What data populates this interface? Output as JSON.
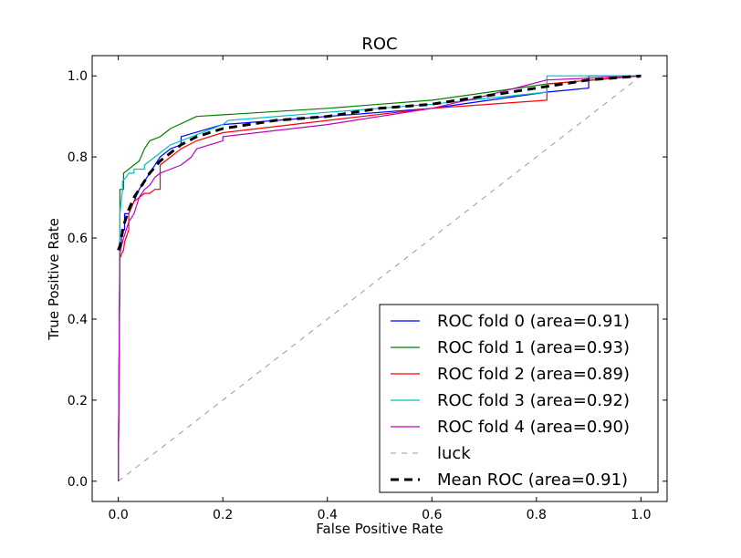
{
  "chart_data": {
    "type": "line",
    "title": "ROC",
    "xlabel": "False Positive Rate",
    "ylabel": "True Positive Rate",
    "xlim": [
      -0.05,
      1.05
    ],
    "ylim": [
      -0.05,
      1.05
    ],
    "xticks": [
      0.0,
      0.2,
      0.4,
      0.6,
      0.8,
      1.0
    ],
    "yticks": [
      0.0,
      0.2,
      0.4,
      0.6,
      0.8,
      1.0
    ],
    "xtick_labels": [
      "0.0",
      "0.2",
      "0.4",
      "0.6",
      "0.8",
      "1.0"
    ],
    "ytick_labels": [
      "0.0",
      "0.2",
      "0.4",
      "0.6",
      "0.8",
      "1.0"
    ],
    "grid": false,
    "legend_location": "lower-right",
    "series": [
      {
        "name": "ROC fold 0 (area=0.91)",
        "color": "#0000ff",
        "dash": "solid",
        "x": [
          0.0,
          0.003,
          0.006,
          0.006,
          0.012,
          0.012,
          0.02,
          0.04,
          0.05,
          0.06,
          0.08,
          0.1,
          0.12,
          0.12,
          0.2,
          0.4,
          0.6,
          0.82,
          0.9,
          0.9,
          1.0
        ],
        "y": [
          0.0,
          0.57,
          0.59,
          0.62,
          0.62,
          0.66,
          0.66,
          0.72,
          0.74,
          0.76,
          0.8,
          0.82,
          0.83,
          0.85,
          0.88,
          0.9,
          0.92,
          0.96,
          0.97,
          1.0,
          1.0
        ]
      },
      {
        "name": "ROC fold 1 (area=0.93)",
        "color": "#008000",
        "dash": "solid",
        "x": [
          0.0,
          0.003,
          0.003,
          0.01,
          0.01,
          0.02,
          0.03,
          0.04,
          0.05,
          0.06,
          0.08,
          0.1,
          0.15,
          0.4,
          0.6,
          0.82,
          1.0
        ],
        "y": [
          0.0,
          0.6,
          0.72,
          0.72,
          0.76,
          0.77,
          0.78,
          0.79,
          0.82,
          0.84,
          0.85,
          0.87,
          0.9,
          0.92,
          0.94,
          0.98,
          1.0
        ]
      },
      {
        "name": "ROC fold 2 (area=0.89)",
        "color": "#ff0000",
        "dash": "solid",
        "x": [
          0.0,
          0.003,
          0.006,
          0.01,
          0.012,
          0.02,
          0.02,
          0.03,
          0.04,
          0.05,
          0.06,
          0.07,
          0.08,
          0.08,
          0.1,
          0.12,
          0.15,
          0.2,
          0.4,
          0.6,
          0.82,
          0.82,
          1.0
        ],
        "y": [
          0.0,
          0.55,
          0.56,
          0.57,
          0.59,
          0.62,
          0.66,
          0.69,
          0.7,
          0.71,
          0.71,
          0.72,
          0.72,
          0.78,
          0.8,
          0.82,
          0.84,
          0.86,
          0.89,
          0.92,
          0.94,
          0.98,
          1.0
        ]
      },
      {
        "name": "ROC fold 3 (area=0.92)",
        "color": "#00bfbf",
        "dash": "solid",
        "x": [
          0.0,
          0.003,
          0.003,
          0.008,
          0.008,
          0.015,
          0.02,
          0.03,
          0.03,
          0.05,
          0.05,
          0.07,
          0.1,
          0.12,
          0.2,
          0.21,
          0.4,
          0.6,
          0.82,
          0.82,
          1.0
        ],
        "y": [
          0.0,
          0.6,
          0.66,
          0.72,
          0.74,
          0.75,
          0.76,
          0.76,
          0.77,
          0.77,
          0.78,
          0.8,
          0.83,
          0.84,
          0.88,
          0.89,
          0.91,
          0.93,
          0.96,
          1.0,
          1.0
        ]
      },
      {
        "name": "ROC fold 4 (area=0.90)",
        "color": "#bf00bf",
        "dash": "solid",
        "x": [
          0.0,
          0.003,
          0.006,
          0.01,
          0.02,
          0.03,
          0.04,
          0.05,
          0.06,
          0.07,
          0.08,
          0.1,
          0.12,
          0.14,
          0.15,
          0.2,
          0.2,
          0.4,
          0.6,
          0.7,
          0.82,
          1.0
        ],
        "y": [
          0.0,
          0.56,
          0.58,
          0.6,
          0.64,
          0.66,
          0.7,
          0.72,
          0.73,
          0.75,
          0.76,
          0.77,
          0.78,
          0.8,
          0.82,
          0.84,
          0.85,
          0.88,
          0.92,
          0.95,
          0.99,
          1.0
        ]
      },
      {
        "name": "luck",
        "color": "#999999",
        "dash": "dashed",
        "x": [
          0.0,
          1.0
        ],
        "y": [
          0.0,
          1.0
        ]
      },
      {
        "name": "Mean ROC (area=0.91)",
        "color": "#000000",
        "dash": "dashed-bold",
        "x": [
          0.0,
          0.003,
          0.01,
          0.02,
          0.03,
          0.04,
          0.05,
          0.06,
          0.08,
          0.1,
          0.12,
          0.15,
          0.2,
          0.3,
          0.4,
          0.5,
          0.6,
          0.7,
          0.8,
          0.9,
          1.0
        ],
        "y": [
          0.57,
          0.58,
          0.63,
          0.67,
          0.7,
          0.72,
          0.74,
          0.76,
          0.79,
          0.81,
          0.83,
          0.85,
          0.87,
          0.89,
          0.9,
          0.92,
          0.93,
          0.95,
          0.97,
          0.99,
          1.0
        ]
      }
    ]
  }
}
